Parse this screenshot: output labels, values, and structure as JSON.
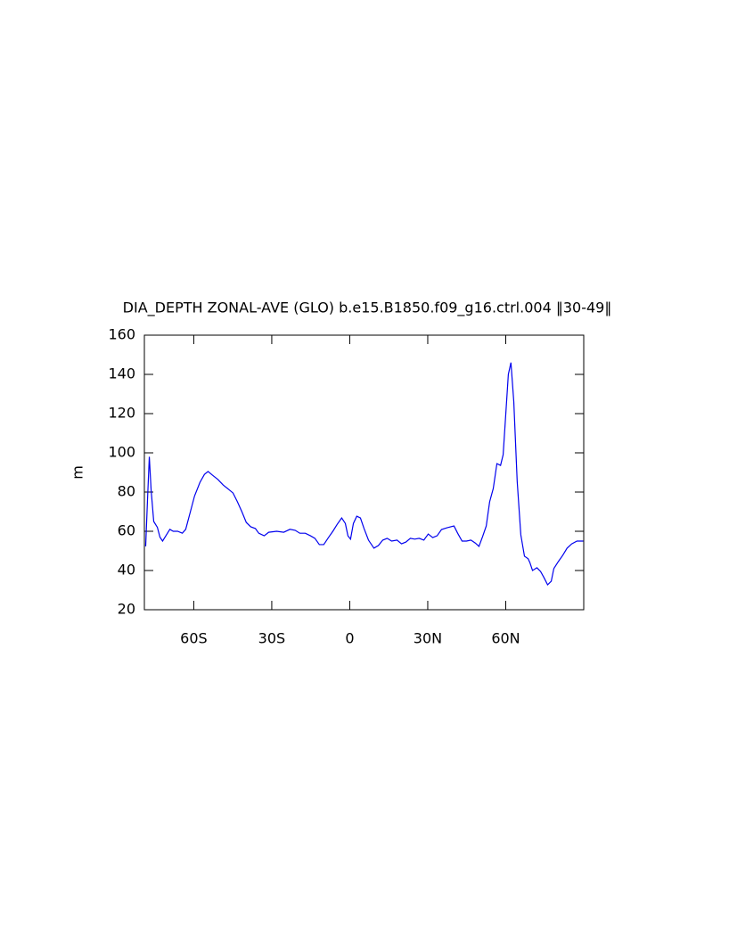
{
  "chart_data": {
    "type": "line",
    "title": "DIA_DEPTH ZONAL-AVE (GLO) b.e15.B1850.f09_g16.ctrl.004 ‖30-49‖",
    "y_label": "m",
    "xlim": [
      -79,
      90
    ],
    "xticks": [
      {
        "value": -60,
        "label": "60S"
      },
      {
        "value": -30,
        "label": "30S"
      },
      0,
      {
        "value": 30,
        "label": "30N"
      },
      {
        "value": 60,
        "label": "60N"
      }
    ],
    "ylim": [
      20,
      160
    ],
    "yticks": [
      20,
      40,
      60,
      80,
      100,
      120,
      140,
      160
    ],
    "x": [
      -78.5,
      -77.8,
      -77.1,
      -76.4,
      -75.4,
      -74.0,
      -73.0,
      -72.0,
      -70.6,
      -69.2,
      -67.9,
      -66.2,
      -64.4,
      -63.1,
      -61.4,
      -59.7,
      -57.6,
      -55.9,
      -54.5,
      -52.8,
      -50.7,
      -48.7,
      -46.6,
      -44.9,
      -43.2,
      -41.5,
      -39.8,
      -38.1,
      -36.3,
      -35.0,
      -32.9,
      -31.2,
      -28.1,
      -25.4,
      -23.0,
      -21.0,
      -19.2,
      -17.1,
      -15.1,
      -13.4,
      -11.7,
      -10.0,
      -8.2,
      -6.5,
      -4.8,
      -3.1,
      -1.7,
      -0.7,
      0.3,
      1.4,
      2.7,
      4.1,
      5.5,
      7.2,
      9.3,
      11.0,
      12.7,
      14.4,
      16.1,
      18.2,
      19.9,
      21.6,
      23.3,
      25.0,
      26.7,
      28.5,
      30.2,
      31.9,
      33.6,
      35.3,
      37.4,
      40.1,
      41.5,
      43.2,
      44.9,
      46.6,
      48.3,
      49.7,
      51.1,
      52.5,
      53.8,
      55.2,
      56.6,
      58.0,
      59.0,
      60.0,
      61.0,
      62.0,
      63.1,
      64.4,
      65.8,
      67.2,
      68.6,
      69.3,
      70.3,
      72.0,
      73.4,
      74.7,
      76.1,
      77.5,
      78.5,
      80.2,
      81.9,
      83.6,
      85.4,
      87.4,
      89.8
    ],
    "series": [
      {
        "name": "DIA_DEPTH",
        "color": "#0000ee",
        "values": [
          52.3,
          76,
          98,
          81,
          65,
          62,
          57,
          55,
          58,
          61,
          60,
          60,
          59,
          61,
          69.5,
          78,
          85,
          89,
          90.5,
          88.6,
          86.4,
          83.6,
          81.4,
          79.5,
          75,
          70,
          64.5,
          62.3,
          61.4,
          59,
          57.7,
          59.5,
          60,
          59.5,
          61,
          60.5,
          59,
          59,
          57.7,
          56.4,
          53.2,
          53.2,
          56.8,
          60,
          63.6,
          66.8,
          64,
          57.7,
          56,
          64,
          67.7,
          66.8,
          61.4,
          55.5,
          51.4,
          52.7,
          55.5,
          56.4,
          55,
          55.5,
          53.6,
          54.5,
          56.4,
          56,
          56.4,
          55.5,
          58.6,
          56.8,
          57.7,
          60.9,
          61.8,
          62.7,
          59,
          55,
          55,
          55.5,
          54,
          52.3,
          57.3,
          62.7,
          75,
          81.8,
          94.5,
          93.6,
          99,
          119.5,
          140,
          146,
          126,
          85.5,
          58.2,
          47.3,
          46,
          44,
          40,
          41.4,
          39.5,
          36.4,
          32.7,
          34.5,
          41,
          44.5,
          47.7,
          51.4,
          53.6,
          55,
          55
        ]
      }
    ]
  }
}
